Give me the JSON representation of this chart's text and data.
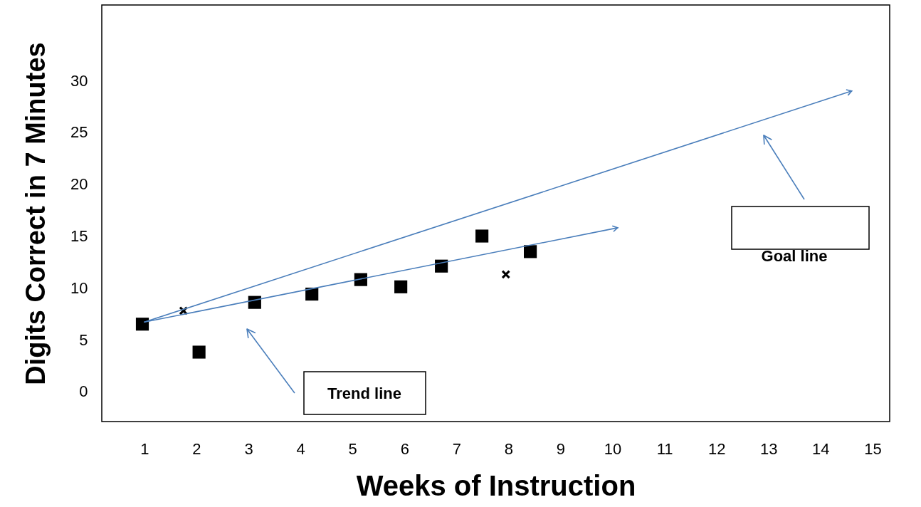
{
  "chart_data": {
    "type": "scatter",
    "xlabel": "Weeks of Instruction",
    "ylabel": "Digits Correct in 7 Minutes",
    "xlim": [
      0.18,
      15.33
    ],
    "xticks": [
      1,
      2,
      3,
      4,
      5,
      6,
      7,
      8,
      9,
      10,
      11,
      12,
      13,
      14,
      15
    ],
    "ylim": [
      -2.9,
      37.3
    ],
    "yticks": [
      0,
      5,
      10,
      15,
      20,
      25,
      30
    ],
    "series": [
      {
        "marker": "square",
        "color": "#000000",
        "x": [
          0.96,
          2.05,
          3.12,
          4.22,
          5.16,
          5.93,
          6.71,
          7.49,
          8.42
        ],
        "values": [
          6.5,
          3.8,
          8.6,
          9.4,
          10.8,
          10.1,
          12.1,
          15.0,
          13.5
        ]
      },
      {
        "marker": "cross",
        "color": "#000000",
        "x": [
          1.75,
          7.95
        ],
        "values": [
          7.8,
          11.3
        ]
      },
      {
        "type": "line",
        "color": "#4a7ebb",
        "x": [
          1.0,
          10.1
        ],
        "values": [
          6.7,
          15.8
        ]
      },
      {
        "type": "line",
        "color": "#4a7ebb",
        "x": [
          1.0,
          14.6
        ],
        "values": [
          6.7,
          29.0
        ]
      }
    ],
    "annotations": [
      "Trend line",
      "Goal line"
    ]
  }
}
